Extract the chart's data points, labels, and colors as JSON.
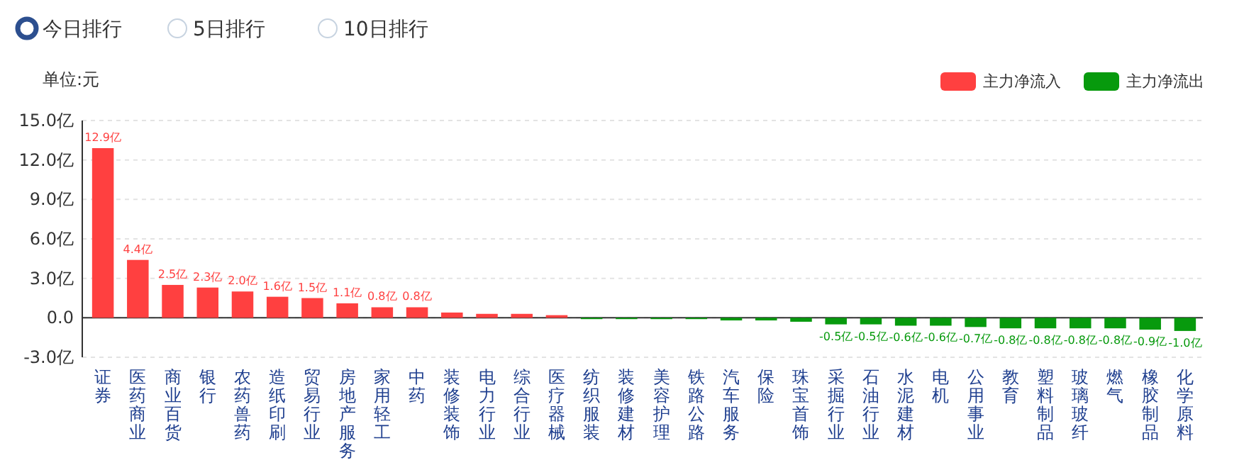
{
  "chart_data": {
    "type": "bar",
    "ylabel": "单位:元",
    "annotations": [
      "今日排行",
      "5日排行",
      "10日排行"
    ],
    "categories": [
      "证券",
      "医药商业",
      "商业百货",
      "银行",
      "农药兽药",
      "造纸印刷",
      "贸易行业",
      "房地产服务",
      "家用轻工",
      "中药",
      "装修装饰",
      "电力行业",
      "综合行业",
      "医疗器械",
      "纺织服装",
      "装修建材",
      "美容护理",
      "铁路公路",
      "汽车服务",
      "保险",
      "珠宝首饰",
      "采掘行业",
      "石油行业",
      "水泥建材",
      "电机",
      "公用事业",
      "教育",
      "塑料制品",
      "玻璃玻纤",
      "燃气",
      "橡胶制品",
      "化学原料"
    ],
    "series": [
      {
        "name": "主力净流入",
        "color": "#ff4040",
        "values": [
          12.9,
          4.4,
          2.5,
          2.3,
          2.0,
          1.6,
          1.5,
          1.1,
          0.8,
          0.8,
          0.4,
          0.3,
          0.3,
          0.2,
          null,
          null,
          null,
          null,
          null,
          null,
          null,
          null,
          null,
          null,
          null,
          null,
          null,
          null,
          null,
          null,
          null,
          null
        ],
        "value_labels": [
          "12.9亿",
          "4.4亿",
          "2.5亿",
          "2.3亿",
          "2.0亿",
          "1.6亿",
          "1.5亿",
          "1.1亿",
          "0.8亿",
          "0.8亿",
          null,
          null,
          null,
          null,
          null,
          null,
          null,
          null,
          null,
          null,
          null,
          null,
          null,
          null,
          null,
          null,
          null,
          null,
          null,
          null,
          null,
          null
        ]
      },
      {
        "name": "主力净流出",
        "color": "#079a0d",
        "values": [
          null,
          null,
          null,
          null,
          null,
          null,
          null,
          null,
          null,
          null,
          null,
          null,
          null,
          null,
          -0.1,
          -0.1,
          -0.1,
          -0.1,
          -0.2,
          -0.2,
          -0.3,
          -0.5,
          -0.5,
          -0.6,
          -0.6,
          -0.7,
          -0.8,
          -0.8,
          -0.8,
          -0.8,
          -0.9,
          -1.0
        ],
        "value_labels": [
          null,
          null,
          null,
          null,
          null,
          null,
          null,
          null,
          null,
          null,
          null,
          null,
          null,
          null,
          null,
          null,
          null,
          null,
          null,
          null,
          null,
          "-0.5亿",
          "-0.5亿",
          "-0.6亿",
          "-0.6亿",
          "-0.7亿",
          "-0.8亿",
          "-0.8亿",
          "-0.8亿",
          "-0.8亿",
          "-0.9亿",
          "-1.0亿"
        ]
      }
    ],
    "ylim": [
      -3,
      15
    ],
    "yticks": [
      {
        "value": -3,
        "label": "-3.0亿"
      },
      {
        "value": 0,
        "label": "0.0"
      },
      {
        "value": 3,
        "label": "3.0亿"
      },
      {
        "value": 6,
        "label": "6.0亿"
      },
      {
        "value": 9,
        "label": "9.0亿"
      },
      {
        "value": 12,
        "label": "12.0亿"
      },
      {
        "value": 15,
        "label": "15.0亿"
      }
    ],
    "grid": "y",
    "legend": "top right"
  }
}
